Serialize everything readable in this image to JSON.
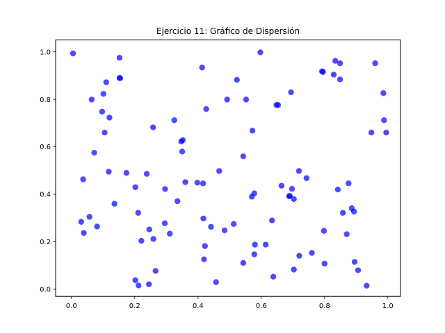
{
  "chart_data": {
    "type": "scatter",
    "title": "Ejercicio 11: Gráfico de Dispersión",
    "xlabel": "",
    "ylabel": "",
    "xlim": [
      -0.05,
      1.04
    ],
    "ylim": [
      -0.03,
      1.05
    ],
    "xticks": [
      0.0,
      0.2,
      0.4,
      0.6,
      0.8,
      1.0
    ],
    "xtick_labels": [
      "0.0",
      "0.2",
      "0.4",
      "0.6",
      "0.8",
      "1.0"
    ],
    "yticks": [
      0.0,
      0.2,
      0.4,
      0.6,
      0.8,
      1.0
    ],
    "ytick_labels": [
      "0.0",
      "0.2",
      "0.4",
      "0.6",
      "0.8",
      "1.0"
    ],
    "grid": false,
    "color": "#0000ff",
    "alpha": 0.7,
    "points": [
      [
        0.005,
        0.993
      ],
      [
        0.152,
        0.975
      ],
      [
        0.597,
        0.998
      ],
      [
        0.413,
        0.934
      ],
      [
        0.834,
        0.962
      ],
      [
        0.849,
        0.952
      ],
      [
        0.96,
        0.952
      ],
      [
        0.152,
        0.89
      ],
      [
        0.154,
        0.889
      ],
      [
        0.11,
        0.872
      ],
      [
        0.523,
        0.882
      ],
      [
        0.792,
        0.918
      ],
      [
        0.795,
        0.915
      ],
      [
        0.829,
        0.904
      ],
      [
        0.849,
        0.884
      ],
      [
        0.101,
        0.823
      ],
      [
        0.064,
        0.799
      ],
      [
        0.492,
        0.799
      ],
      [
        0.552,
        0.799
      ],
      [
        0.694,
        0.83
      ],
      [
        0.986,
        0.826
      ],
      [
        0.426,
        0.759
      ],
      [
        0.648,
        0.776
      ],
      [
        0.653,
        0.776
      ],
      [
        0.097,
        0.748
      ],
      [
        0.12,
        0.723
      ],
      [
        0.325,
        0.712
      ],
      [
        0.988,
        0.712
      ],
      [
        0.258,
        0.682
      ],
      [
        0.572,
        0.668
      ],
      [
        0.105,
        0.66
      ],
      [
        0.948,
        0.66
      ],
      [
        0.995,
        0.66
      ],
      [
        0.347,
        0.622
      ],
      [
        0.352,
        0.628
      ],
      [
        0.072,
        0.575
      ],
      [
        0.35,
        0.58
      ],
      [
        0.543,
        0.56
      ],
      [
        0.118,
        0.495
      ],
      [
        0.174,
        0.49
      ],
      [
        0.238,
        0.486
      ],
      [
        0.467,
        0.498
      ],
      [
        0.719,
        0.498
      ],
      [
        0.037,
        0.463
      ],
      [
        0.743,
        0.468
      ],
      [
        0.36,
        0.451
      ],
      [
        0.398,
        0.449
      ],
      [
        0.416,
        0.446
      ],
      [
        0.876,
        0.446
      ],
      [
        0.202,
        0.43
      ],
      [
        0.296,
        0.422
      ],
      [
        0.664,
        0.436
      ],
      [
        0.697,
        0.423
      ],
      [
        0.842,
        0.42
      ],
      [
        0.578,
        0.404
      ],
      [
        0.57,
        0.39
      ],
      [
        0.688,
        0.392
      ],
      [
        0.69,
        0.393
      ],
      [
        0.703,
        0.38
      ],
      [
        0.335,
        0.371
      ],
      [
        0.136,
        0.36
      ],
      [
        0.886,
        0.341
      ],
      [
        0.893,
        0.327
      ],
      [
        0.211,
        0.322
      ],
      [
        0.858,
        0.322
      ],
      [
        0.057,
        0.305
      ],
      [
        0.417,
        0.298
      ],
      [
        0.634,
        0.29
      ],
      [
        0.031,
        0.284
      ],
      [
        0.295,
        0.278
      ],
      [
        0.513,
        0.275
      ],
      [
        0.081,
        0.264
      ],
      [
        0.441,
        0.263
      ],
      [
        0.246,
        0.252
      ],
      [
        0.484,
        0.248
      ],
      [
        0.798,
        0.246
      ],
      [
        0.039,
        0.237
      ],
      [
        0.311,
        0.234
      ],
      [
        0.87,
        0.232
      ],
      [
        0.259,
        0.212
      ],
      [
        0.221,
        0.204
      ],
      [
        0.58,
        0.188
      ],
      [
        0.614,
        0.188
      ],
      [
        0.422,
        0.182
      ],
      [
        0.76,
        0.153
      ],
      [
        0.578,
        0.147
      ],
      [
        0.72,
        0.141
      ],
      [
        0.419,
        0.126
      ],
      [
        0.895,
        0.115
      ],
      [
        0.543,
        0.111
      ],
      [
        0.8,
        0.108
      ],
      [
        0.703,
        0.083
      ],
      [
        0.906,
        0.08
      ],
      [
        0.266,
        0.077
      ],
      [
        0.638,
        0.053
      ],
      [
        0.202,
        0.038
      ],
      [
        0.457,
        0.03
      ],
      [
        0.212,
        0.016
      ],
      [
        0.245,
        0.021
      ],
      [
        0.933,
        0.015
      ]
    ]
  }
}
